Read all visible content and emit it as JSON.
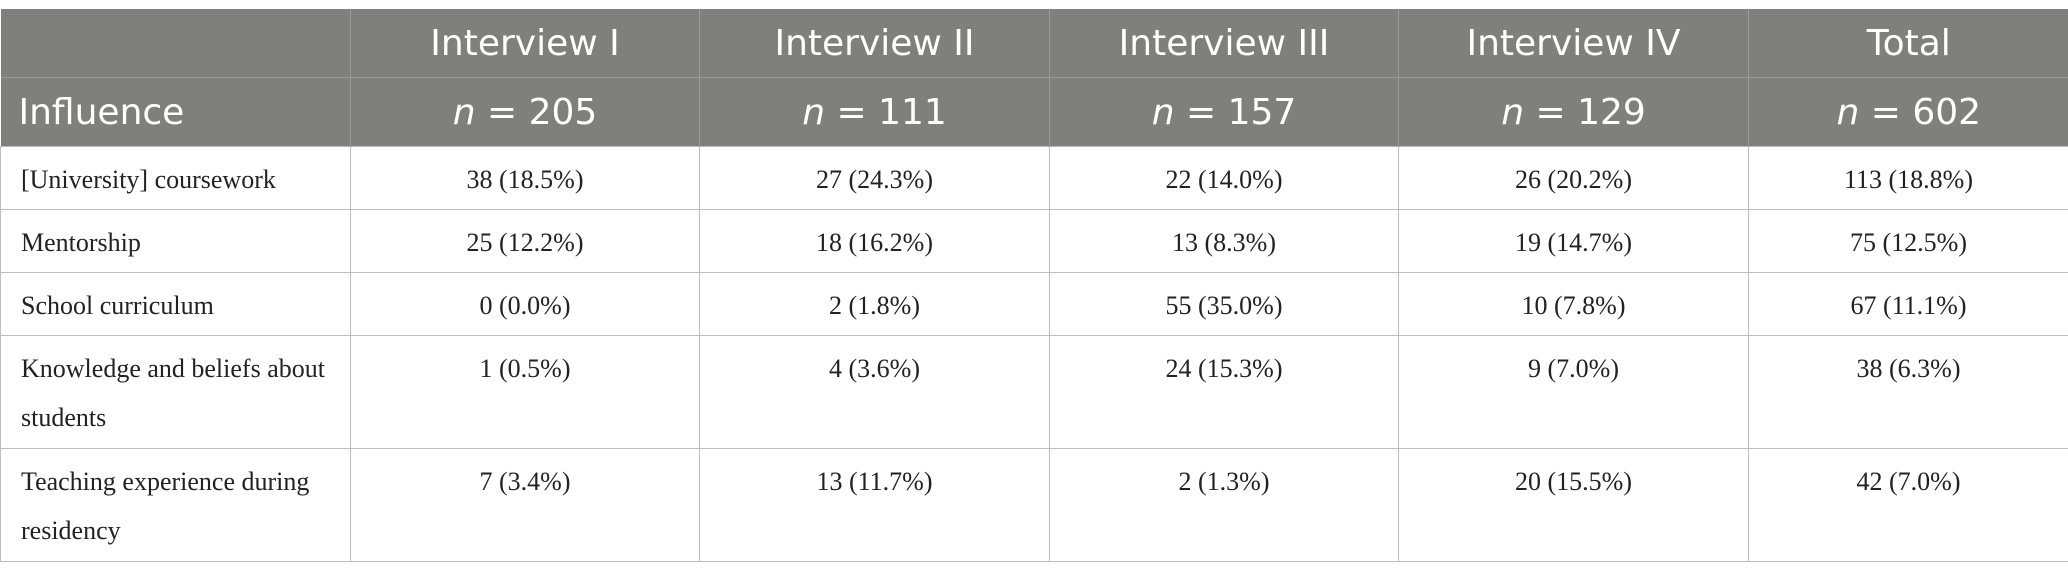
{
  "table": {
    "columns": [
      "Interview I",
      "Interview II",
      "Interview III",
      "Interview IV",
      "Total"
    ],
    "row_header": "Influence",
    "counts": [
      {
        "var": "n",
        "text": "= 205"
      },
      {
        "var": "n",
        "text": "= 111"
      },
      {
        "var": "n",
        "text": "= 157"
      },
      {
        "var": "n",
        "text": "= 129"
      },
      {
        "var": "n",
        "text": "= 602"
      }
    ],
    "rows": [
      {
        "label": "[University] coursework",
        "cells": [
          "38 (18.5%)",
          "27 (24.3%)",
          "22 (14.0%)",
          "26 (20.2%)",
          "113 (18.8%)"
        ]
      },
      {
        "label": "Mentorship",
        "cells": [
          "25 (12.2%)",
          "18 (16.2%)",
          "13 (8.3%)",
          "19 (14.7%)",
          "75 (12.5%)"
        ]
      },
      {
        "label": "School curriculum",
        "cells": [
          "0 (0.0%)",
          "2 (1.8%)",
          "55 (35.0%)",
          "10 (7.8%)",
          "67 (11.1%)"
        ]
      },
      {
        "label": "Knowledge and beliefs about students",
        "cells": [
          "1 (0.5%)",
          "4 (3.6%)",
          "24 (15.3%)",
          "9 (7.0%)",
          "38 (6.3%)"
        ]
      },
      {
        "label": "Teaching experience during residency",
        "cells": [
          "7 (3.4%)",
          "13 (11.7%)",
          "2 (1.3%)",
          "20 (15.5%)",
          "42 (7.0%)"
        ]
      }
    ]
  }
}
